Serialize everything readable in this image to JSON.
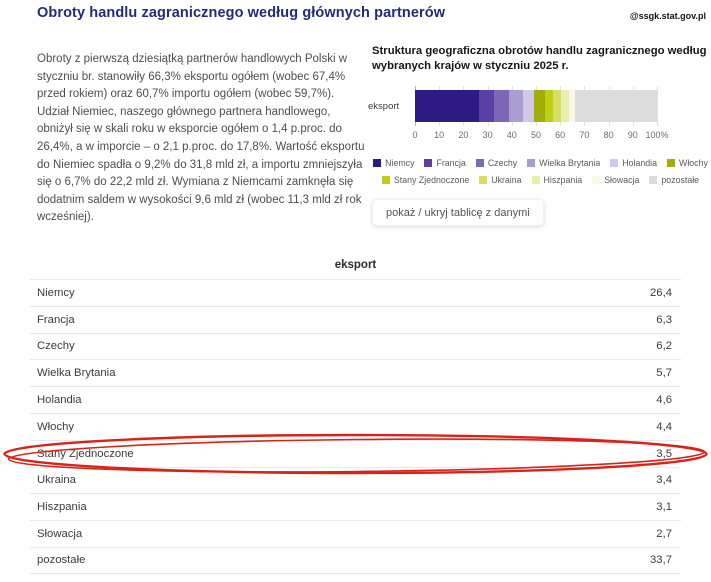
{
  "header": {
    "title": "Obroty handlu zagranicznego według głównych partnerów",
    "watermark": "@ssgk.stat.gov.pl"
  },
  "article": {
    "paragraph": "Obroty z pierwszą dziesiątką partnerów handlowych Polski w styczniu br. stanowiły 66,3% eksportu ogółem (wobec 67,4% przed rokiem) oraz 60,7% importu ogółem (wobec 59,7%). Udział Niemiec, naszego głównego partnera handlowego, obniżył się w skali roku w eksporcie ogółem o 1,4 p.proc. do 26,4%, a w imporcie – o 2,1 p.proc. do 17,8%. Wartość eksportu do Niemiec spadła o 9,2% do 31,8 mld zł, a importu zmniejszyła się o 6,7% do 22,2 mld zł. Wymiana z Niemcami zamknęła się dodatnim saldem w wysokości 9,6 mld zł (wobec 11,3 mld zł rok wcześniej)."
  },
  "chart": {
    "title": "Struktura geograficzna obrotów handlu zagranicznego według wybranych krajów w styczniu 2025 r.",
    "row_label": "eksport",
    "toggle_button_label": "pokaż / ukryj tablicę z danymi"
  },
  "chart_data": {
    "type": "bar",
    "orientation": "horizontal-stacked",
    "title": "Struktura geograficzna obrotów handlu zagranicznego według wybranych krajów w styczniu 2025 r.",
    "categories": [
      "eksport"
    ],
    "series": [
      {
        "name": "Niemcy",
        "value": 26.4,
        "color": "#2d1a82"
      },
      {
        "name": "Francja",
        "value": 6.3,
        "color": "#5a3fa5"
      },
      {
        "name": "Czechy",
        "value": 6.2,
        "color": "#7c68b7"
      },
      {
        "name": "Wielka Brytania",
        "value": 5.7,
        "color": "#ab9dd1"
      },
      {
        "name": "Holandia",
        "value": 4.6,
        "color": "#cfc8e6"
      },
      {
        "name": "Włochy",
        "value": 4.4,
        "color": "#a2ae08"
      },
      {
        "name": "Stany Zjednoczone",
        "value": 3.5,
        "color": "#bfcf12"
      },
      {
        "name": "Ukraina",
        "value": 3.4,
        "color": "#d5de62"
      },
      {
        "name": "Hiszpania",
        "value": 3.1,
        "color": "#eaefae"
      },
      {
        "name": "Słowacja",
        "value": 2.7,
        "color": "#f7f9e2"
      },
      {
        "name": "pozostałe",
        "value": 33.7,
        "color": "#dcdcdc"
      }
    ],
    "x_ticks": [
      "0",
      "10",
      "20",
      "30",
      "40",
      "50",
      "60",
      "70",
      "80",
      "90",
      "100%"
    ],
    "xlim": [
      0,
      100
    ],
    "grid": true,
    "legend_position": "bottom"
  },
  "table": {
    "header": "eksport",
    "rows": [
      {
        "label": "Niemcy",
        "value": "26,4"
      },
      {
        "label": "Francja",
        "value": "6,3"
      },
      {
        "label": "Czechy",
        "value": "6,2"
      },
      {
        "label": "Wielka Brytania",
        "value": "5,7"
      },
      {
        "label": "Holandia",
        "value": "4,6"
      },
      {
        "label": "Włochy",
        "value": "4,4"
      },
      {
        "label": "Stany Zjednoczone",
        "value": "3,5",
        "highlighted": true
      },
      {
        "label": "Ukraina",
        "value": "3,4"
      },
      {
        "label": "Hiszpania",
        "value": "3,1"
      },
      {
        "label": "Słowacja",
        "value": "2,7"
      },
      {
        "label": "pozostałe",
        "value": "33,7"
      }
    ]
  },
  "annotation": {
    "type": "hand-drawn-ellipse",
    "target_row": "Stany Zjednoczone",
    "color": "#d7241a"
  }
}
